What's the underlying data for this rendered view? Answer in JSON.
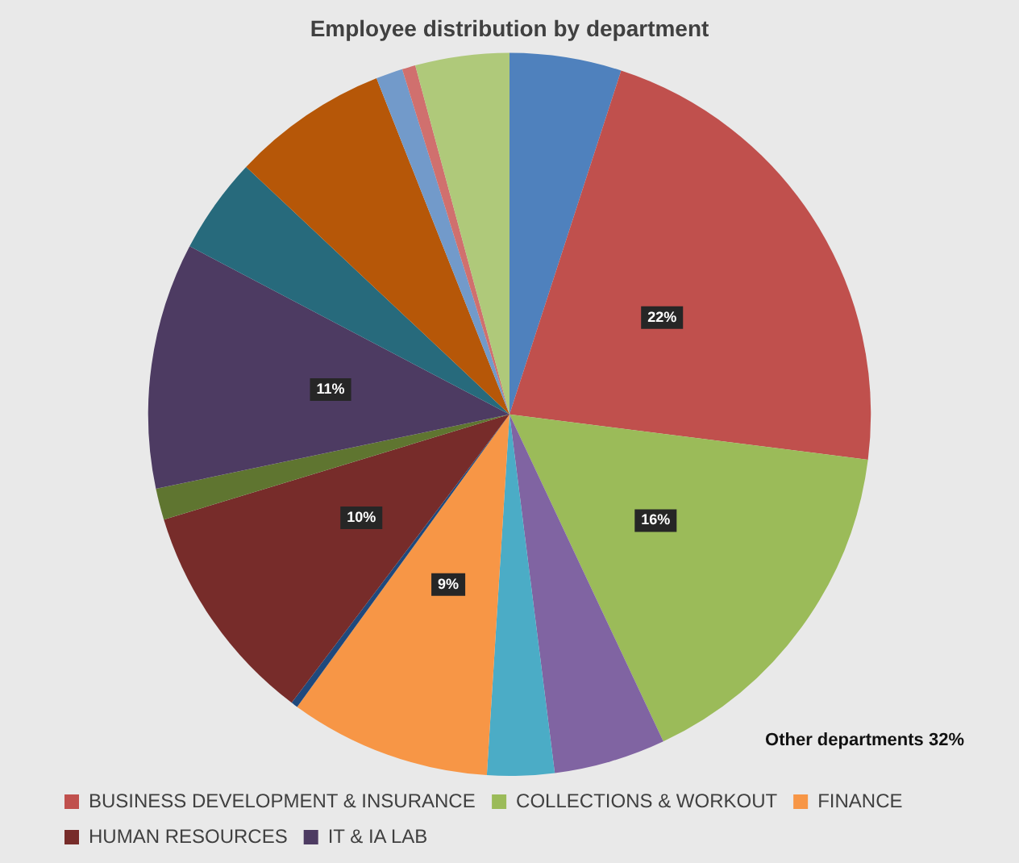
{
  "chart_data": {
    "type": "pie",
    "title": "Employee distribution by department",
    "categories": [
      null,
      "BUSINESS DEVELOPMENT & INSURANCE",
      "COLLECTIONS & WORKOUT",
      null,
      null,
      "FINANCE",
      null,
      "HUMAN RESOURCES",
      null,
      "IT & IA LAB",
      null,
      null,
      null,
      null,
      null
    ],
    "values": [
      5,
      22,
      16,
      5,
      3,
      9,
      0.3,
      10,
      1.4,
      11,
      4.3,
      7,
      1.2,
      0.6,
      4.2
    ],
    "colors": [
      "#4f81bd",
      "#c0504d",
      "#9bbb59",
      "#8064a2",
      "#4bacc6",
      "#f79646",
      "#1f497d",
      "#772c2a",
      "#5f7530",
      "#4d3b62",
      "#276a7c",
      "#b65708",
      "#729aca",
      "#d0706e",
      "#afc97a"
    ],
    "value_labels": [
      null,
      "22%",
      "16%",
      null,
      null,
      "9%",
      null,
      "10%",
      null,
      "11%",
      null,
      null,
      null,
      null,
      null
    ],
    "annotations": [
      "Other departments 32%"
    ],
    "legend": "bottom"
  }
}
